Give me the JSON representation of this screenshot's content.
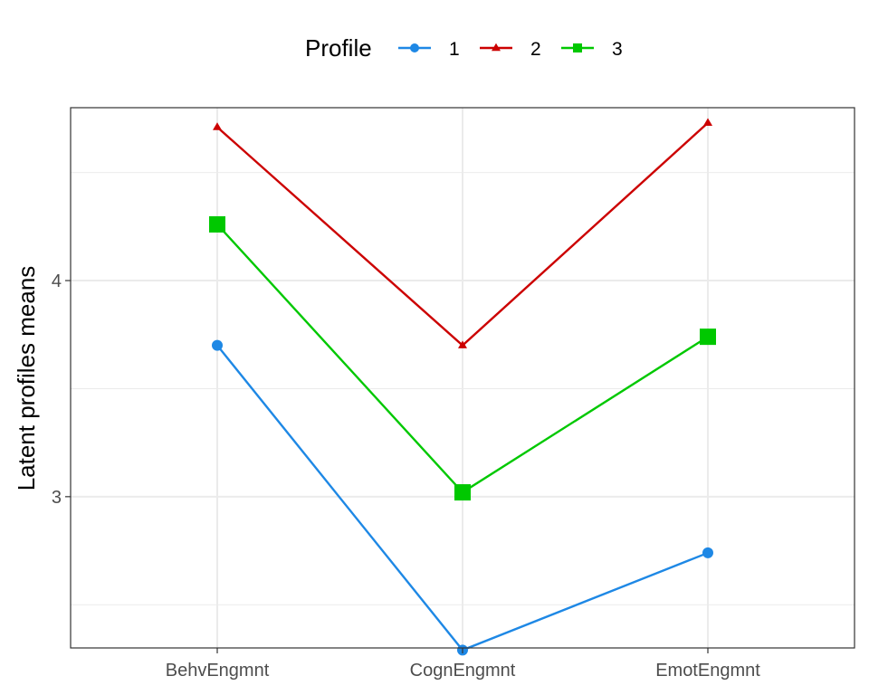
{
  "chart_data": {
    "type": "line",
    "ylabel": "Latent profiles means",
    "xlabel": "",
    "categories": [
      "BehvEngmnt",
      "CognEngmnt",
      "EmotEngmnt"
    ],
    "ylim": [
      2.3,
      4.8
    ],
    "yticks": [
      3,
      4
    ],
    "grid": true,
    "legend": {
      "title": "Profile",
      "position": "top"
    },
    "series": [
      {
        "name": "1",
        "values": [
          3.7,
          2.29,
          2.74
        ],
        "color": "#1e88e5",
        "marker": "circle"
      },
      {
        "name": "2",
        "values": [
          4.71,
          3.7,
          4.73
        ],
        "color": "#cc0000",
        "marker": "triangle"
      },
      {
        "name": "3",
        "values": [
          4.26,
          3.02,
          3.74
        ],
        "color": "#00c800",
        "marker": "square"
      }
    ]
  }
}
